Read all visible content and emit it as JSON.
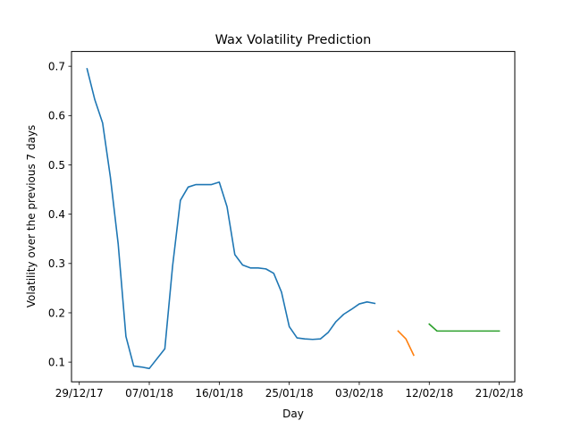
{
  "chart_data": {
    "type": "line",
    "title": "Wax Volatility Prediction",
    "xlabel": "Day",
    "ylabel": "Volatility over the previous 7 days",
    "x_ticks": [
      "29/12/17",
      "07/01/18",
      "16/01/18",
      "25/01/18",
      "03/02/18",
      "12/02/18",
      "21/02/18"
    ],
    "y_ticks": [
      "0.1",
      "0.2",
      "0.3",
      "0.4",
      "0.5",
      "0.6",
      "0.7"
    ],
    "xlim": [
      "2017-12-28",
      "2018-02-23"
    ],
    "ylim": [
      0.06,
      0.73
    ],
    "grid": false,
    "legend": "none",
    "series": [
      {
        "color": "#1f77b4",
        "points": [
          [
            "2017-12-30",
            0.695
          ],
          [
            "2017-12-31",
            0.632
          ],
          [
            "2018-01-01",
            0.585
          ],
          [
            "2018-01-02",
            0.475
          ],
          [
            "2018-01-03",
            0.34
          ],
          [
            "2018-01-04",
            0.152
          ],
          [
            "2018-01-05",
            0.092
          ],
          [
            "2018-01-06",
            0.09
          ],
          [
            "2018-01-07",
            0.087
          ],
          [
            "2018-01-09",
            0.127
          ],
          [
            "2018-01-10",
            0.295
          ],
          [
            "2018-01-11",
            0.428
          ],
          [
            "2018-01-12",
            0.455
          ],
          [
            "2018-01-13",
            0.46
          ],
          [
            "2018-01-14",
            0.46
          ],
          [
            "2018-01-15",
            0.46
          ],
          [
            "2018-01-16",
            0.465
          ],
          [
            "2018-01-17",
            0.415
          ],
          [
            "2018-01-18",
            0.318
          ],
          [
            "2018-01-19",
            0.297
          ],
          [
            "2018-01-20",
            0.291
          ],
          [
            "2018-01-21",
            0.291
          ],
          [
            "2018-01-22",
            0.289
          ],
          [
            "2018-01-23",
            0.28
          ],
          [
            "2018-01-24",
            0.242
          ],
          [
            "2018-01-25",
            0.172
          ],
          [
            "2018-01-26",
            0.149
          ],
          [
            "2018-01-27",
            0.147
          ],
          [
            "2018-01-28",
            0.146
          ],
          [
            "2018-01-29",
            0.147
          ],
          [
            "2018-01-30",
            0.16
          ],
          [
            "2018-01-31",
            0.182
          ],
          [
            "2018-02-01",
            0.197
          ],
          [
            "2018-02-02",
            0.207
          ],
          [
            "2018-02-03",
            0.218
          ],
          [
            "2018-02-04",
            0.222
          ],
          [
            "2018-02-05",
            0.219
          ]
        ]
      },
      {
        "color": "#ff7f0e",
        "points": [
          [
            "2018-02-08",
            0.163
          ],
          [
            "2018-02-09",
            0.147
          ],
          [
            "2018-02-10",
            0.114
          ]
        ]
      },
      {
        "color": "#2ca02c",
        "points": [
          [
            "2018-02-12",
            0.177
          ],
          [
            "2018-02-13",
            0.163
          ],
          [
            "2018-02-14",
            0.163
          ],
          [
            "2018-02-15",
            0.163
          ],
          [
            "2018-02-16",
            0.163
          ],
          [
            "2018-02-17",
            0.163
          ],
          [
            "2018-02-18",
            0.163
          ],
          [
            "2018-02-19",
            0.163
          ],
          [
            "2018-02-20",
            0.163
          ],
          [
            "2018-02-21",
            0.163
          ]
        ]
      }
    ]
  }
}
